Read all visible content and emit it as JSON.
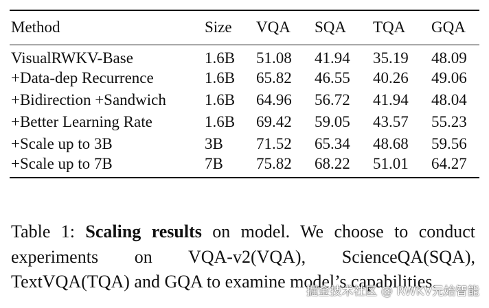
{
  "table": {
    "headers": [
      "Method",
      "Size",
      "VQA",
      "SQA",
      "TQA",
      "GQA"
    ],
    "rows": [
      [
        "VisualRWKV-Base",
        "1.6B",
        "51.08",
        "41.94",
        "35.19",
        "48.09"
      ],
      [
        "+Data-dep Recurrence",
        "1.6B",
        "65.82",
        "46.55",
        "40.26",
        "49.06"
      ],
      [
        "+Bidirection +Sandwich",
        "1.6B",
        "64.96",
        "56.72",
        "41.94",
        "48.04"
      ],
      [
        "+Better Learning Rate",
        "1.6B",
        "69.42",
        "59.05",
        "43.57",
        "55.23"
      ],
      [
        "+Scale up to 3B",
        "3B",
        "71.52",
        "65.34",
        "48.68",
        "59.56"
      ],
      [
        "+Scale up to 7B",
        "7B",
        "75.82",
        "68.22",
        "51.01",
        "64.27"
      ]
    ]
  },
  "caption": {
    "label": "Table 1: ",
    "bold": "Scaling results",
    "text": " on model. We choose to conduct experiments on VQA-v2(VQA), ScienceQA(SQA), TextVQA(TQA) and GQA to examine model’s capabilities."
  },
  "watermark": "掘金技术社区 @ RWKV元始智能"
}
